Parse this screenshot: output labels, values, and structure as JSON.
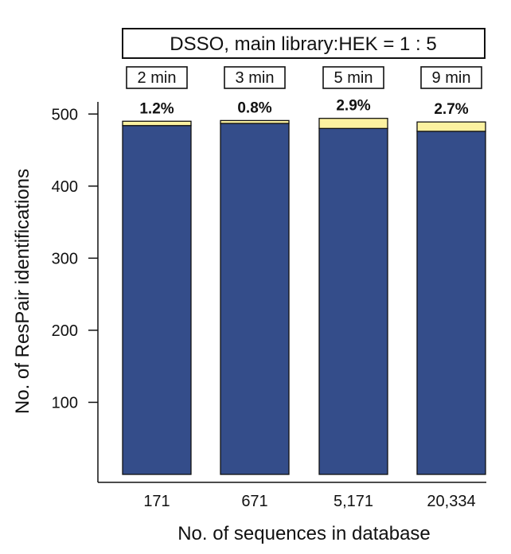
{
  "chart_data": {
    "type": "bar",
    "header": "DSSO, main library:HEK = 1 : 5",
    "categories": [
      "171",
      "671",
      "5,171",
      "20,334"
    ],
    "time_labels": [
      "2 min",
      "3 min",
      "5 min",
      "9 min"
    ],
    "percent_labels": [
      "1.2%",
      "0.8%",
      "2.9%",
      "2.7%"
    ],
    "series": [
      {
        "values": [
          484,
          487,
          480,
          476
        ],
        "color": "#344d8a"
      },
      {
        "values": [
          6,
          4,
          14,
          13
        ],
        "color": "#fbf1a0"
      }
    ],
    "xlabel": "No. of sequences in database",
    "ylabel": "No. of ResPair identifications",
    "yticks": [
      100,
      200,
      300,
      400,
      500
    ],
    "ylim": [
      0,
      520
    ],
    "grid": false,
    "stacked": true
  }
}
